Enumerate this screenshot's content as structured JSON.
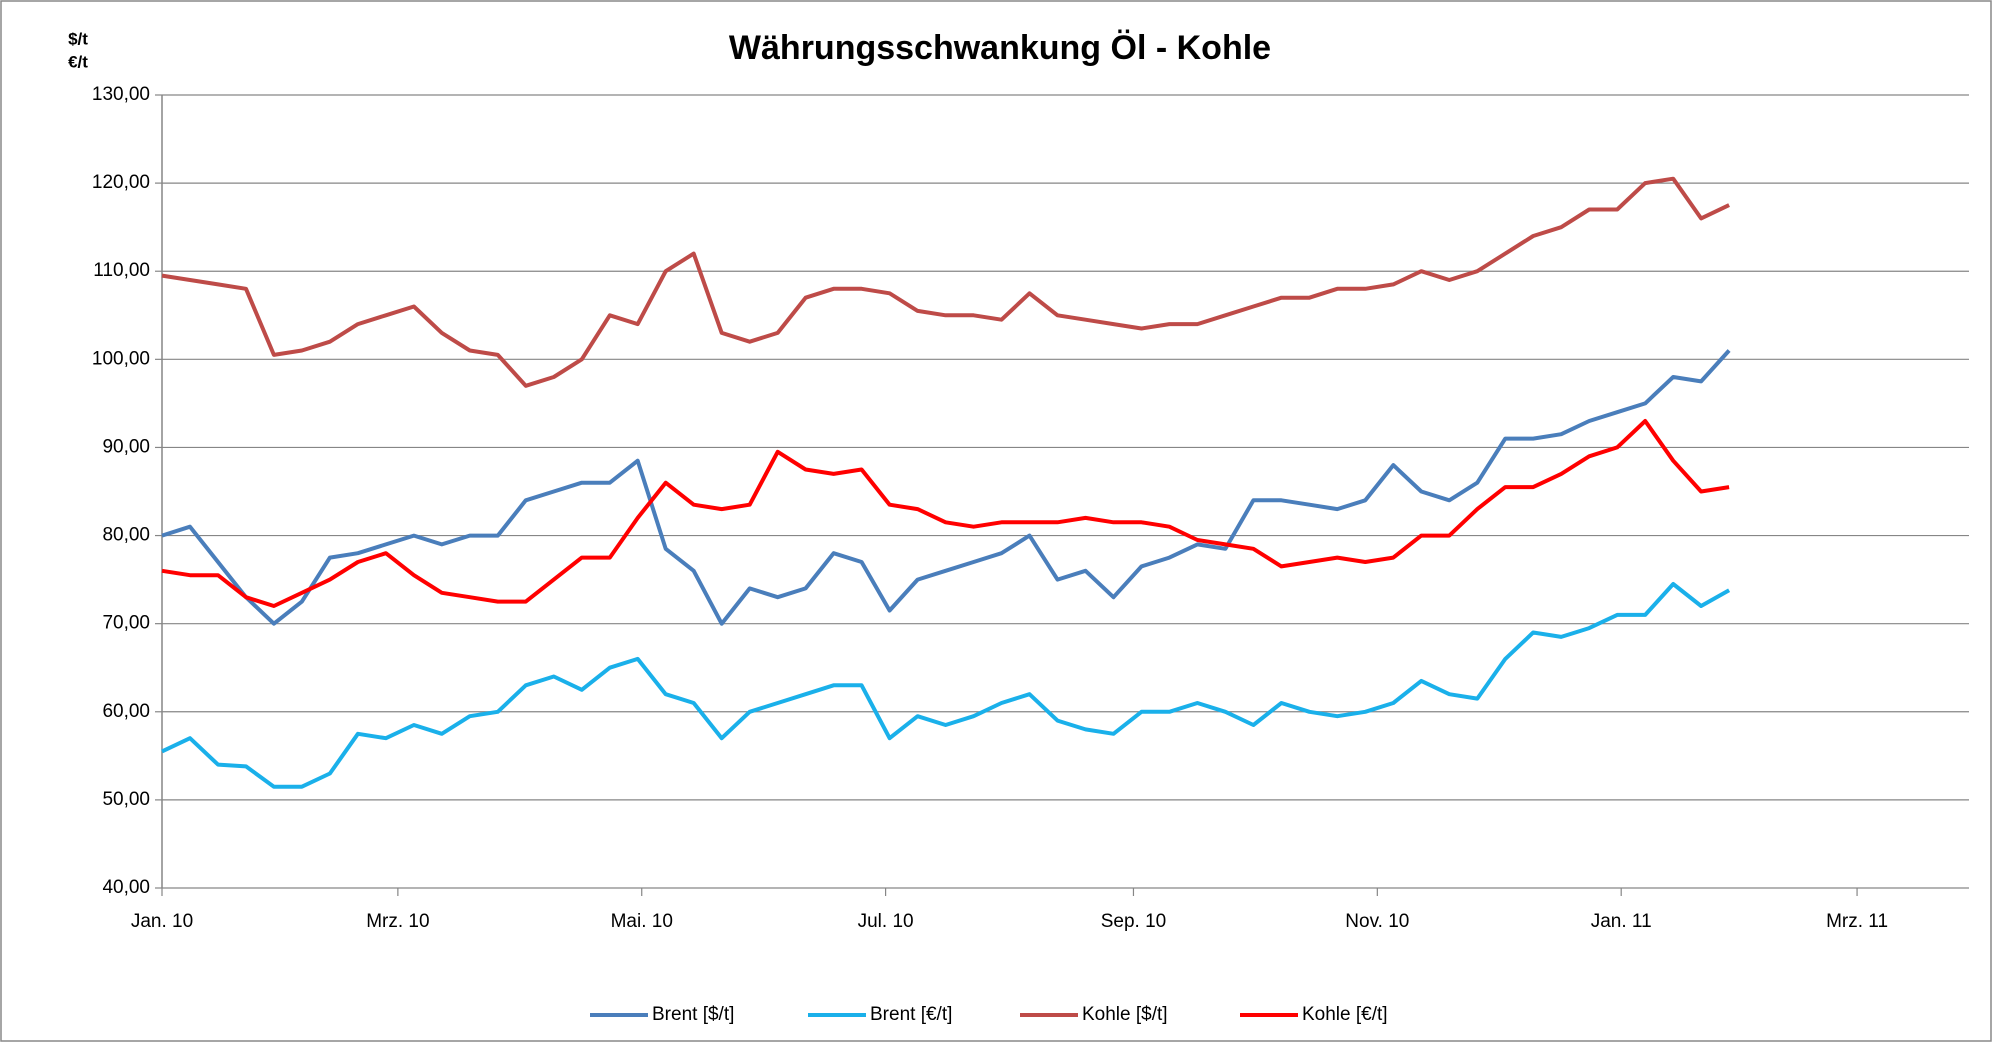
{
  "chart_data": {
    "type": "line",
    "title": "Währungsschwankung Öl - Kohle",
    "y_units": [
      "$/t",
      "€/t"
    ],
    "x": [
      0,
      7,
      14,
      21,
      28,
      35,
      42,
      49,
      56,
      63,
      70,
      77,
      84,
      91,
      98,
      105,
      112,
      119,
      126,
      133,
      140,
      147,
      154,
      161,
      168,
      175,
      182,
      189,
      196,
      203,
      210,
      217,
      224,
      231,
      238,
      245,
      252,
      259,
      266,
      273,
      280,
      287,
      294,
      301,
      308,
      315,
      322,
      329,
      336,
      343,
      350,
      357,
      364,
      371,
      378,
      385,
      392
    ],
    "xlim": [
      0,
      452
    ],
    "xticks": [
      {
        "value": 0,
        "label": "Jan. 10"
      },
      {
        "value": 59,
        "label": "Mrz. 10"
      },
      {
        "value": 120,
        "label": "Mai. 10"
      },
      {
        "value": 181,
        "label": "Jul. 10"
      },
      {
        "value": 243,
        "label": "Sep. 10"
      },
      {
        "value": 304,
        "label": "Nov. 10"
      },
      {
        "value": 365,
        "label": "Jan. 11"
      },
      {
        "value": 424,
        "label": "Mrz. 11"
      }
    ],
    "ylim": [
      40,
      130
    ],
    "yticks": [
      {
        "value": 40,
        "label": "40,00"
      },
      {
        "value": 50,
        "label": "50,00"
      },
      {
        "value": 60,
        "label": "60,00"
      },
      {
        "value": 70,
        "label": "70,00"
      },
      {
        "value": 80,
        "label": "80,00"
      },
      {
        "value": 90,
        "label": "90,00"
      },
      {
        "value": 100,
        "label": "100,00"
      },
      {
        "value": 110,
        "label": "110,00"
      },
      {
        "value": 120,
        "label": "120,00"
      },
      {
        "value": 130,
        "label": "130,00"
      }
    ],
    "grid": true,
    "legend": "bottom",
    "series": [
      {
        "name": "Brent [$/t]",
        "color": "#4a7ebb",
        "values": [
          80,
          81,
          77,
          73,
          70,
          72.5,
          77.5,
          78,
          79,
          80,
          79,
          80,
          80,
          84,
          85,
          86,
          86,
          88.5,
          78.5,
          76,
          70,
          74,
          73,
          74,
          78,
          77,
          71.5,
          75,
          76,
          77,
          78,
          80,
          75,
          76,
          73,
          76.5,
          77.5,
          79,
          78.5,
          84,
          84,
          83.5,
          83,
          84,
          88,
          85,
          84,
          86,
          91,
          91,
          91.5,
          93,
          94,
          95,
          98,
          97.5,
          101
        ]
      },
      {
        "name": "Brent [€/t]",
        "color": "#1ab0ea",
        "values": [
          55.5,
          57,
          54,
          53.8,
          51.5,
          51.5,
          53,
          57.5,
          57,
          58.5,
          57.5,
          59.5,
          60,
          63,
          64,
          62.5,
          65,
          66,
          62,
          61,
          57,
          60,
          61,
          62,
          63,
          63,
          57,
          59.5,
          58.5,
          59.5,
          61,
          62,
          59,
          58,
          57.5,
          60,
          60,
          61,
          60,
          58.5,
          61,
          60,
          59.5,
          60,
          61,
          63.5,
          62,
          61.5,
          66,
          69,
          68.5,
          69.5,
          71,
          71,
          74.5,
          72,
          73.8
        ]
      },
      {
        "name": "Kohle [$/t]",
        "color": "#be4b48",
        "values": [
          109.5,
          109,
          108.5,
          108,
          100.5,
          101,
          102,
          104,
          105,
          106,
          103,
          101,
          100.5,
          97,
          98,
          100,
          105,
          104,
          110,
          112,
          103,
          102,
          103,
          107,
          108,
          108,
          107.5,
          105.5,
          105,
          105,
          104.5,
          107.5,
          105,
          104.5,
          104,
          103.5,
          104,
          104,
          105,
          106,
          107,
          107,
          108,
          108,
          108.5,
          110,
          109,
          110,
          112,
          114,
          115,
          117,
          117,
          120,
          120.5,
          116,
          117.5
        ]
      },
      {
        "name": "Kohle [€/t]",
        "color": "#ff0000",
        "values": [
          76,
          75.5,
          75.5,
          73,
          72,
          73.5,
          75,
          77,
          78,
          75.5,
          73.5,
          73,
          72.5,
          72.5,
          75,
          77.5,
          77.5,
          82,
          86,
          83.5,
          83,
          83.5,
          89.5,
          87.5,
          87,
          87.5,
          83.5,
          83,
          81.5,
          81,
          81.5,
          81.5,
          81.5,
          82,
          81.5,
          81.5,
          81,
          79.5,
          79,
          78.5,
          76.5,
          77,
          77.5,
          77,
          77.5,
          80,
          80,
          83,
          85.5,
          85.5,
          87,
          89,
          90,
          93,
          88.5,
          85,
          85.5
        ]
      }
    ]
  }
}
